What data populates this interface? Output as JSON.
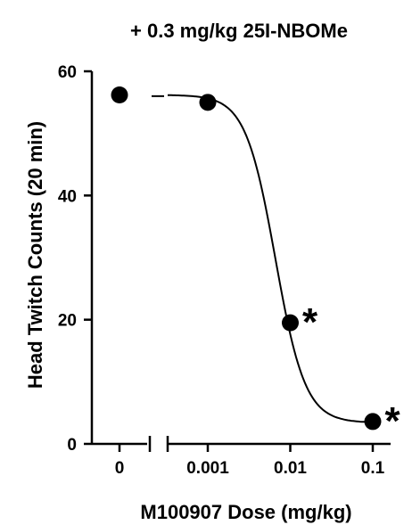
{
  "chart_data": {
    "type": "scatter",
    "title": "+ 0.3 mg/kg 25I-NBOMe",
    "xlabel": "M100907 Dose (mg/kg)",
    "ylabel": "Head Twitch Counts (20 min)",
    "x_scale": "log10 with broken axis segment for 0",
    "x_ticks": [
      "0",
      "0.001",
      "0.01",
      "0.1"
    ],
    "y_ticks": [
      "0",
      "20",
      "40",
      "60"
    ],
    "ylim": [
      0,
      60
    ],
    "grid": false,
    "series": [
      {
        "points": [
          {
            "x": 0,
            "y": 56.2,
            "sig": ""
          },
          {
            "x": 0.001,
            "y": 55.0,
            "sig": ""
          },
          {
            "x": 0.01,
            "y": 19.5,
            "sig": "*"
          },
          {
            "x": 0.1,
            "y": 3.6,
            "sig": "*"
          }
        ]
      }
    ],
    "fit_curve": {
      "type": "sigmoid",
      "top": 56.2,
      "bottom": 3.4,
      "log_ec50": -2.18,
      "hill": -2.4
    }
  }
}
